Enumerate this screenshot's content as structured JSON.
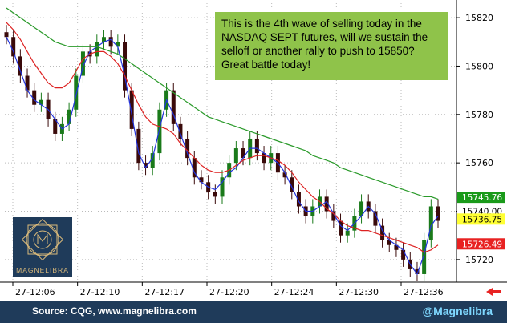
{
  "chart_data": {
    "type": "candlestick",
    "title": "",
    "xlabel": "",
    "ylabel": "",
    "ylim": [
      15712,
      15826
    ],
    "y_ticks": [
      15720,
      15740,
      15760,
      15780,
      15800,
      15820
    ],
    "x_tick_labels": [
      "27-12:06",
      "27-12:10",
      "27-12:17",
      "27-12:20",
      "27-12:24",
      "27-12:30",
      "27-12:36"
    ],
    "grid": true,
    "series": [
      {
        "name": "",
        "color": "#2233dd",
        "values": [
          15812,
          15806,
          15798,
          15790,
          15786,
          15784,
          15782,
          15778,
          15774,
          15776,
          15788,
          15800,
          15806,
          15808,
          15810,
          15811,
          15808,
          15796,
          15780,
          15764,
          15758,
          15762,
          15774,
          15786,
          15780,
          15772,
          15764,
          15756,
          15752,
          15750,
          15749,
          15752,
          15756,
          15758,
          15762,
          15766,
          15766,
          15764,
          15762,
          15760,
          15756,
          15750,
          15744,
          15740,
          15740,
          15742,
          15744,
          15739,
          15734,
          15732,
          15735,
          15738,
          15742,
          15739,
          15732,
          15728,
          15726,
          15724,
          15718,
          15714,
          15722,
          15734,
          15738
        ]
      },
      {
        "name": "",
        "color": "#dd2222",
        "values": [
          15818,
          15815,
          15811,
          15806,
          15801,
          15797,
          15793,
          15791,
          15791,
          15793,
          15798,
          15803,
          15805,
          15806,
          15806,
          15804,
          15801,
          15796,
          15790,
          15784,
          15779,
          15776,
          15775,
          15774,
          15772,
          15768,
          15765,
          15762,
          15759,
          15757,
          15756,
          15756,
          15757,
          15759,
          15761,
          15762,
          15763,
          15763,
          15762,
          15761,
          15759,
          15756,
          15752,
          15749,
          15746,
          15744,
          15741,
          15739,
          15736,
          15734,
          15733,
          15732,
          15732,
          15731,
          15730,
          15729,
          15728,
          15727,
          15726,
          15725,
          15723,
          15724,
          15726
        ]
      },
      {
        "name": "",
        "color": "#2a9a2a",
        "values": [
          15824,
          15822,
          15820,
          15818,
          15816,
          15814,
          15812,
          15810,
          15809,
          15808,
          15808,
          15808,
          15808,
          15808,
          15807,
          15806,
          15805,
          15803,
          15801,
          15799,
          15797,
          15795,
          15793,
          15791,
          15789,
          15787,
          15785,
          15783,
          15781,
          15779,
          15778,
          15777,
          15776,
          15775,
          15774,
          15773,
          15772,
          15771,
          15770,
          15769,
          15768,
          15767,
          15766,
          15765,
          15763,
          15762,
          15761,
          15760,
          15758,
          15757,
          15756,
          15755,
          15754,
          15753,
          15752,
          15751,
          15750,
          15749,
          15748,
          15747,
          15746,
          15746,
          15745
        ]
      }
    ],
    "ohlc_close": [
      15812,
      15804,
      15796,
      15790,
      15784,
      15786,
      15778,
      15772,
      15776,
      15782,
      15796,
      15806,
      15804,
      15810,
      15812,
      15808,
      15810,
      15790,
      15774,
      15760,
      15758,
      15764,
      15782,
      15790,
      15776,
      15770,
      15762,
      15754,
      15752,
      15748,
      15746,
      15754,
      15760,
      15766,
      15762,
      15770,
      15764,
      15760,
      15764,
      15756,
      15754,
      15748,
      15742,
      15738,
      15742,
      15746,
      15740,
      15736,
      15730,
      15732,
      15738,
      15744,
      15740,
      15734,
      15728,
      15726,
      15724,
      15720,
      15716,
      15714,
      15728,
      15742,
      15736
    ],
    "price_labels": [
      {
        "text": "15745.76",
        "value": 15745.76,
        "bg": "#1a9a1a",
        "fg": "#ffffff"
      },
      {
        "text": "15740.00",
        "value": 15740.0,
        "bg": "#ffffff",
        "fg": "#000000"
      },
      {
        "text": "15736.75",
        "value": 15736.75,
        "bg": "#ffff33",
        "fg": "#000000"
      },
      {
        "text": "15726.49",
        "value": 15726.49,
        "bg": "#e82222",
        "fg": "#ffffff"
      }
    ],
    "annotation": "This is the 4th wave of selling today in the NASDAQ SEPT futures, will we sustain the selloff or another rally to push to 15850? Great battle today!"
  },
  "footer": {
    "source": "Source: CQG, www.magnelibra.com",
    "handle": "@Magnelibra"
  },
  "logo": {
    "text": "MAGNELIBRA"
  },
  "colors": {
    "footer_bg": "#1f3b5a",
    "note_bg": "#8fc34a",
    "handle": "#7fd8ff",
    "arrow": "#e82222"
  }
}
